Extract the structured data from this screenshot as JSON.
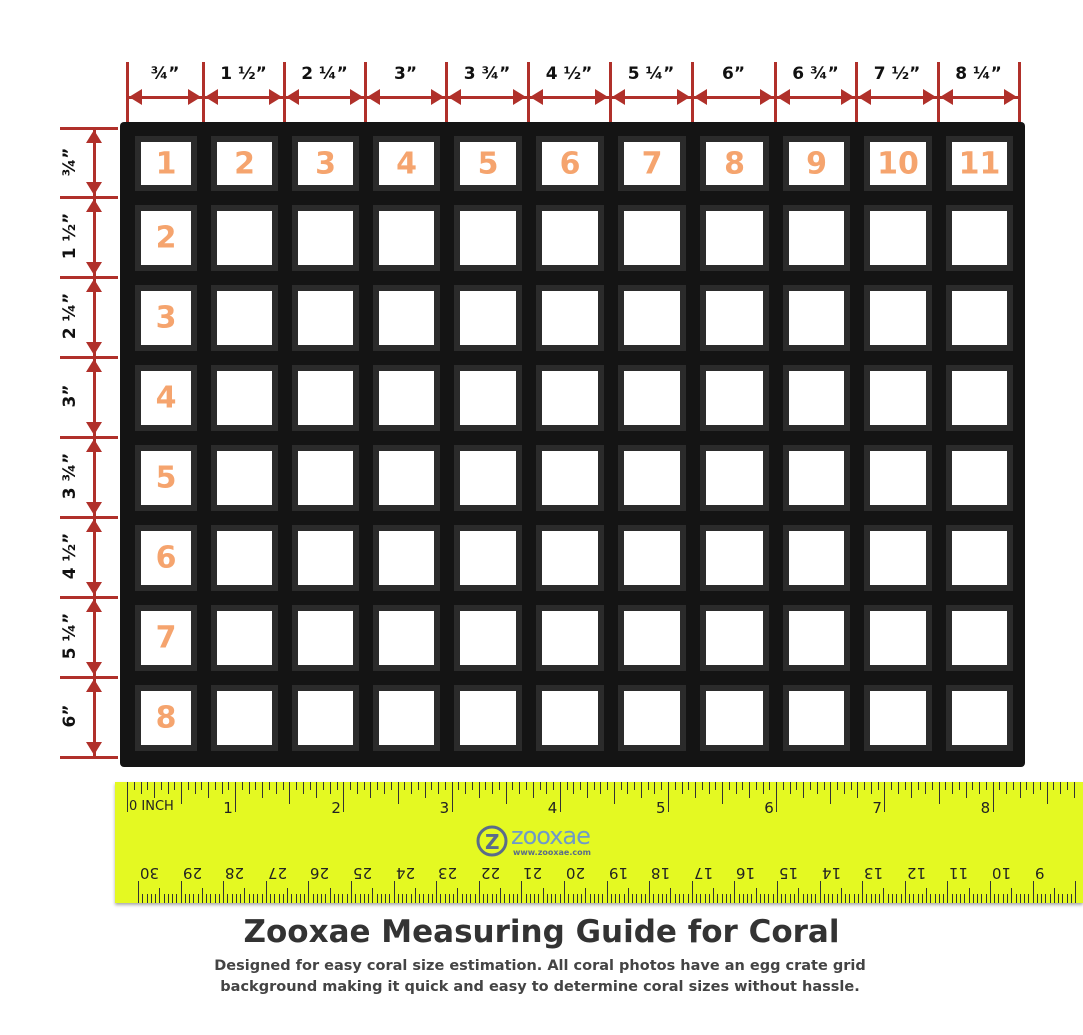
{
  "column_widths": [
    "¾”",
    "1 ½”",
    "2 ¼”",
    "3”",
    "3 ¾”",
    "4 ½”",
    "5 ¼”",
    "6”",
    "6 ¾”",
    "7 ½”",
    "8 ¼”"
  ],
  "row_heights": [
    "¾”",
    "1 ½”",
    "2 ¼”",
    "3”",
    "3 ¾”",
    "4 ½”",
    "5 ¼”",
    "6”"
  ],
  "column_numbers": [
    "1",
    "2",
    "3",
    "4",
    "5",
    "6",
    "7",
    "8",
    "9",
    "10",
    "11"
  ],
  "row_numbers": [
    "1",
    "2",
    "3",
    "4",
    "5",
    "6",
    "7",
    "8"
  ],
  "ruler": {
    "inch_labels": [
      "0 INCH",
      "1",
      "2",
      "3",
      "4",
      "5",
      "6",
      "7",
      "8"
    ],
    "cm_labels": [
      "30",
      "29",
      "28",
      "27",
      "26",
      "25",
      "24",
      "23",
      "22",
      "21",
      "20",
      "19",
      "18",
      "17",
      "16",
      "15",
      "14",
      "13",
      "12",
      "11",
      "10",
      "9"
    ],
    "logo_text": "zooxae",
    "logo_url": "www.zooxae.com"
  },
  "title": "Zooxae Measuring Guide for Coral",
  "subtitle": "Designed for easy coral size estimation. All coral photos have an egg crate grid background making it quick and easy to determine coral sizes without hassle.",
  "colors": {
    "dimension": "#b0302a",
    "cell_number": "#f5a46e",
    "ruler": "#e4f922",
    "grid": "#141414"
  }
}
